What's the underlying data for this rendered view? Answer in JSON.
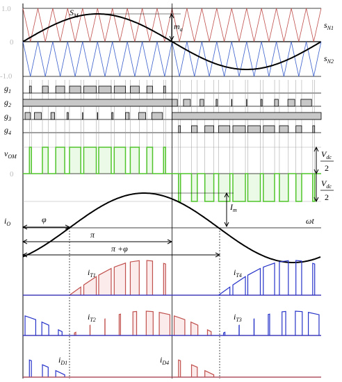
{
  "axis": {
    "one": "1.0",
    "zero": "0",
    "minus_one": "-1.0",
    "vom_zero": "0"
  },
  "labels": {
    "sm": {
      "text": "S",
      "sub": "M"
    },
    "ma": {
      "text": "m",
      "sub": "a"
    },
    "sn1": {
      "text": "s",
      "sub": "N1"
    },
    "sn2": {
      "text": "s",
      "sub": "N2"
    },
    "g1": {
      "text": "g",
      "sub": "1"
    },
    "g2": {
      "text": "g",
      "sub": "2"
    },
    "g3": {
      "text": "g",
      "sub": "3"
    },
    "g4": {
      "text": "g",
      "sub": "4"
    },
    "vom": {
      "text": "v",
      "sub": "OM"
    },
    "vdc_top": {
      "text": "V",
      "sub": "dc",
      "den": "2"
    },
    "vdc_bottom": {
      "text": "V",
      "sub": "dc",
      "den": "2"
    },
    "io": {
      "text": "i",
      "sub": "O"
    },
    "phi": "φ",
    "pi": "π",
    "pi_phi": "π +φ",
    "im": {
      "text": "I",
      "sub": "m"
    },
    "wt": "ωt",
    "it1": {
      "text": "i",
      "sub": "T1"
    },
    "it4": {
      "text": "i",
      "sub": "T4"
    },
    "it2": {
      "text": "i",
      "sub": "T2"
    },
    "it3": {
      "text": "i",
      "sub": "T3"
    },
    "id1": {
      "text": "i",
      "sub": "D1"
    },
    "id4": {
      "text": "i",
      "sub": "D4"
    }
  }
}
